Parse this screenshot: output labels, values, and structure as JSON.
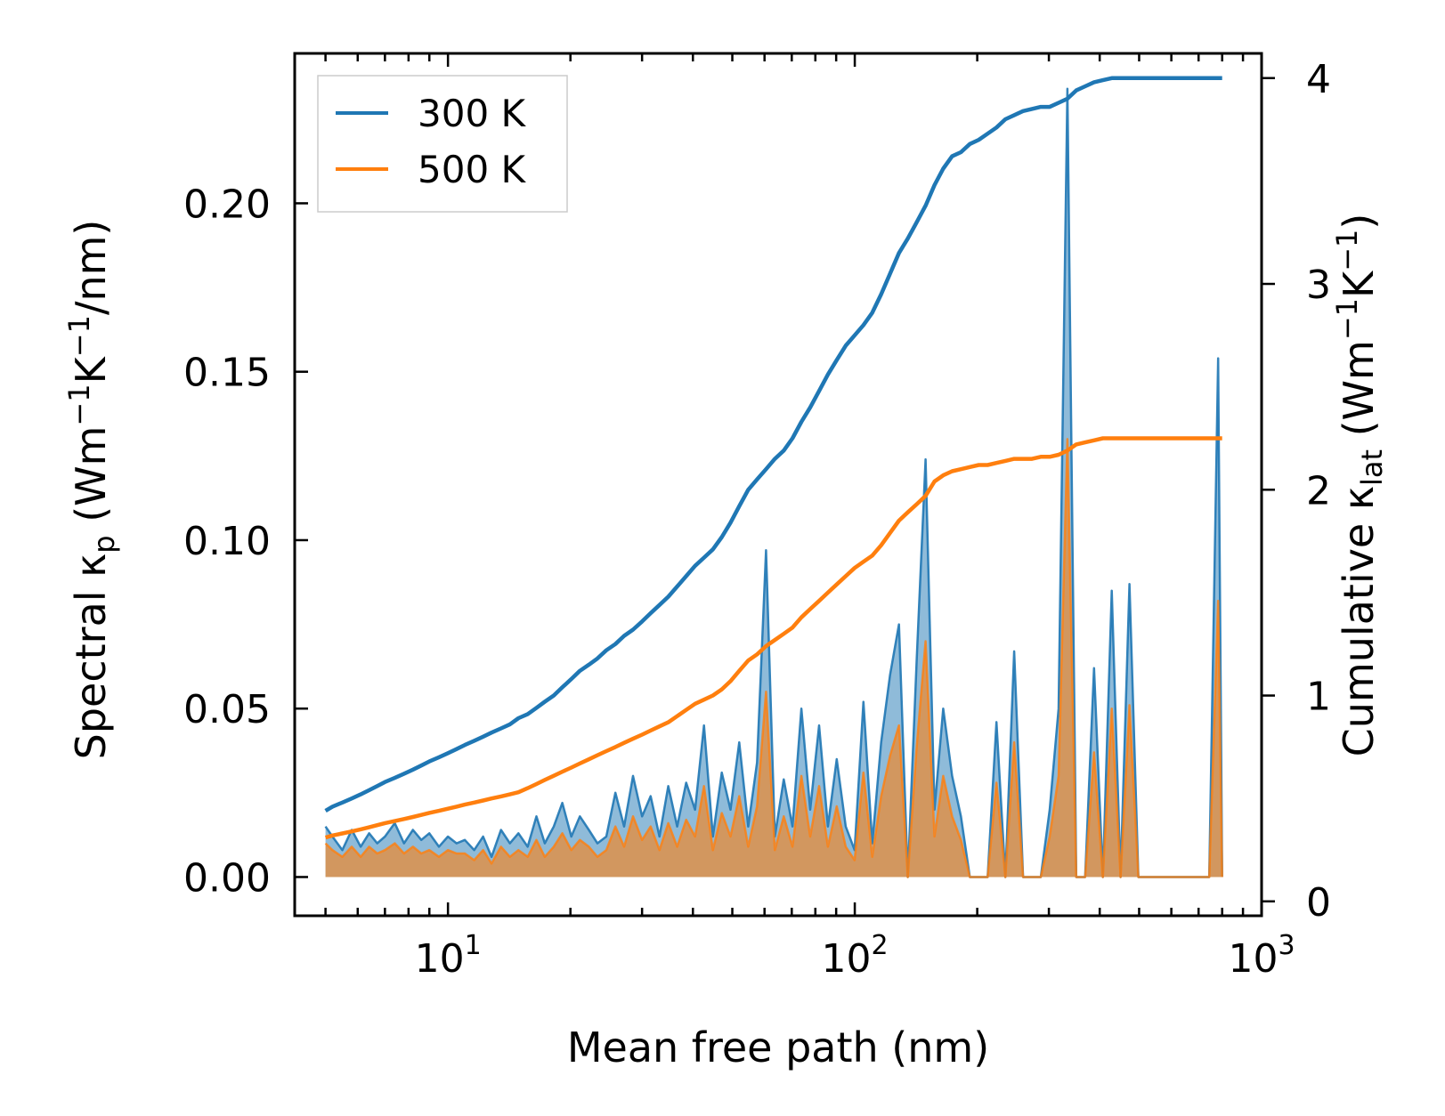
{
  "chart_data": {
    "type": "line",
    "xlabel": "Mean free path (nm)",
    "xscale": "log",
    "xlim": [
      4.2,
      1000
    ],
    "x_tick_labels": [
      {
        "value": 10,
        "base": "10",
        "exp": "1"
      },
      {
        "value": 100,
        "base": "10",
        "exp": "2"
      },
      {
        "value": 1000,
        "base": "10",
        "exp": "3"
      }
    ],
    "left_axis": {
      "label_main": "Spectral κ",
      "label_sub": "p",
      "label_units": " (Wm",
      "label_units_2": "K",
      "label_units_3": "/nm)",
      "label_sup": "−1",
      "ylim": [
        -0.0115,
        0.2445
      ],
      "ticks": [
        "0.00",
        "0.05",
        "0.10",
        "0.15",
        "0.20"
      ]
    },
    "right_axis": {
      "label_main": "Cumulative κ",
      "label_sub": "lat",
      "label_units": " (Wm",
      "label_units_2": "K",
      "label_units_3": ")",
      "label_sup": "−1",
      "ylim": [
        -0.07,
        4.12
      ],
      "ticks": [
        "0",
        "1",
        "2",
        "3",
        "4"
      ]
    },
    "legend": {
      "position": "upper-left",
      "entries": [
        {
          "label": "300 K",
          "color": "#1f77b4"
        },
        {
          "label": "500 K",
          "color": "#ff7f0e"
        }
      ]
    },
    "spectral_x": [
      5.0,
      5.2,
      5.5,
      5.8,
      6.1,
      6.4,
      6.7,
      7.0,
      7.4,
      7.8,
      8.2,
      8.6,
      9.0,
      9.5,
      10.0,
      10.5,
      11.0,
      11.6,
      12.2,
      12.8,
      13.5,
      14.2,
      14.9,
      15.7,
      16.5,
      17.3,
      18.2,
      19.1,
      20.1,
      21.1,
      22.2,
      23.3,
      24.5,
      25.8,
      27.1,
      28.5,
      30.0,
      31.5,
      33.1,
      34.8,
      36.6,
      38.5,
      40.5,
      42.6,
      44.8,
      47.1,
      49.5,
      52.0,
      54.7,
      57.5,
      60.5,
      63.6,
      66.9,
      70.3,
      73.9,
      77.7,
      81.7,
      85.9,
      90.3,
      95.0,
      99.9,
      105.0,
      110.4,
      116.1,
      122.1,
      128.4,
      135.0,
      142.0,
      149.3,
      157.0,
      165.0,
      173.5,
      182.4,
      191.8,
      201.7,
      212.1,
      223.0,
      234.5,
      246.5,
      259.2,
      272.6,
      286.6,
      301.4,
      316.9,
      333.2,
      350.3,
      368.3,
      387.3,
      407.2,
      428.2,
      450.2,
      473.4,
      497.8,
      523.4,
      550.3,
      578.6,
      608.4,
      639.7,
      672.6,
      707.3,
      743.7,
      782.0,
      800.0
    ],
    "series": [
      {
        "name": "300 K",
        "color": "#1f77b4",
        "spectral": [
          0.015,
          0.012,
          0.008,
          0.014,
          0.009,
          0.013,
          0.01,
          0.012,
          0.016,
          0.01,
          0.014,
          0.011,
          0.013,
          0.009,
          0.012,
          0.01,
          0.011,
          0.008,
          0.012,
          0.006,
          0.014,
          0.01,
          0.013,
          0.009,
          0.018,
          0.01,
          0.015,
          0.022,
          0.012,
          0.018,
          0.014,
          0.01,
          0.012,
          0.025,
          0.015,
          0.03,
          0.018,
          0.024,
          0.012,
          0.027,
          0.015,
          0.028,
          0.02,
          0.045,
          0.012,
          0.031,
          0.02,
          0.04,
          0.015,
          0.034,
          0.097,
          0.012,
          0.029,
          0.015,
          0.05,
          0.02,
          0.045,
          0.015,
          0.035,
          0.015,
          0.008,
          0.052,
          0.01,
          0.04,
          0.06,
          0.075,
          0.0,
          0.065,
          0.124,
          0.02,
          0.05,
          0.03,
          0.018,
          0.0,
          0.0,
          0.0,
          0.046,
          0.0,
          0.067,
          0.0,
          0.0,
          0.0,
          0.02,
          0.05,
          0.234,
          0.0,
          0.0,
          0.062,
          0.0,
          0.085,
          0.0,
          0.087,
          0.0,
          0.0,
          0.0,
          0.0,
          0.0,
          0.0,
          0.0,
          0.0,
          0.0,
          0.154,
          0.0
        ],
        "cumulative": [
          0.44,
          0.46,
          0.48,
          0.5,
          0.52,
          0.54,
          0.56,
          0.58,
          0.6,
          0.62,
          0.64,
          0.66,
          0.68,
          0.7,
          0.72,
          0.74,
          0.76,
          0.78,
          0.8,
          0.82,
          0.84,
          0.86,
          0.89,
          0.91,
          0.94,
          0.97,
          1.0,
          1.04,
          1.08,
          1.12,
          1.15,
          1.18,
          1.22,
          1.25,
          1.29,
          1.32,
          1.36,
          1.4,
          1.44,
          1.48,
          1.53,
          1.58,
          1.63,
          1.67,
          1.71,
          1.77,
          1.84,
          1.92,
          2.0,
          2.05,
          2.1,
          2.15,
          2.19,
          2.25,
          2.33,
          2.4,
          2.48,
          2.56,
          2.63,
          2.7,
          2.75,
          2.8,
          2.86,
          2.95,
          3.05,
          3.15,
          3.22,
          3.3,
          3.38,
          3.48,
          3.56,
          3.62,
          3.64,
          3.68,
          3.7,
          3.73,
          3.76,
          3.8,
          3.82,
          3.84,
          3.85,
          3.86,
          3.86,
          3.88,
          3.9,
          3.94,
          3.96,
          3.98,
          3.99,
          4.0,
          4.0,
          4.0,
          4.0,
          4.0,
          4.0,
          4.0,
          4.0,
          4.0,
          4.0,
          4.0,
          4.0,
          4.0,
          4.0
        ]
      },
      {
        "name": "500 K",
        "color": "#ff7f0e",
        "spectral": [
          0.01,
          0.008,
          0.006,
          0.009,
          0.006,
          0.009,
          0.007,
          0.008,
          0.01,
          0.007,
          0.009,
          0.007,
          0.008,
          0.006,
          0.008,
          0.007,
          0.007,
          0.005,
          0.008,
          0.004,
          0.009,
          0.006,
          0.008,
          0.006,
          0.011,
          0.006,
          0.009,
          0.013,
          0.008,
          0.011,
          0.009,
          0.006,
          0.008,
          0.015,
          0.009,
          0.018,
          0.011,
          0.015,
          0.008,
          0.016,
          0.009,
          0.017,
          0.012,
          0.027,
          0.008,
          0.019,
          0.012,
          0.024,
          0.009,
          0.021,
          0.055,
          0.008,
          0.018,
          0.009,
          0.03,
          0.012,
          0.027,
          0.009,
          0.021,
          0.009,
          0.005,
          0.031,
          0.006,
          0.024,
          0.036,
          0.045,
          0.0,
          0.039,
          0.07,
          0.012,
          0.03,
          0.018,
          0.011,
          0.0,
          0.0,
          0.0,
          0.028,
          0.0,
          0.04,
          0.0,
          0.0,
          0.0,
          0.012,
          0.03,
          0.13,
          0.0,
          0.0,
          0.037,
          0.0,
          0.05,
          0.0,
          0.051,
          0.0,
          0.0,
          0.0,
          0.0,
          0.0,
          0.0,
          0.0,
          0.0,
          0.0,
          0.082,
          0.0
        ],
        "cumulative": [
          0.31,
          0.32,
          0.33,
          0.34,
          0.35,
          0.36,
          0.37,
          0.38,
          0.39,
          0.4,
          0.41,
          0.42,
          0.43,
          0.44,
          0.45,
          0.46,
          0.47,
          0.48,
          0.49,
          0.5,
          0.51,
          0.52,
          0.53,
          0.55,
          0.57,
          0.59,
          0.61,
          0.63,
          0.65,
          0.67,
          0.69,
          0.71,
          0.73,
          0.75,
          0.77,
          0.79,
          0.81,
          0.83,
          0.85,
          0.87,
          0.9,
          0.93,
          0.96,
          0.98,
          1.0,
          1.03,
          1.07,
          1.12,
          1.17,
          1.2,
          1.24,
          1.27,
          1.3,
          1.33,
          1.38,
          1.42,
          1.46,
          1.5,
          1.54,
          1.58,
          1.62,
          1.65,
          1.68,
          1.73,
          1.79,
          1.85,
          1.89,
          1.93,
          1.97,
          2.04,
          2.07,
          2.09,
          2.1,
          2.11,
          2.12,
          2.12,
          2.13,
          2.14,
          2.15,
          2.15,
          2.15,
          2.16,
          2.16,
          2.17,
          2.19,
          2.22,
          2.23,
          2.24,
          2.25,
          2.25,
          2.25,
          2.25,
          2.25,
          2.25,
          2.25,
          2.25,
          2.25,
          2.25,
          2.25,
          2.25,
          2.25,
          2.25,
          2.25
        ]
      }
    ]
  }
}
